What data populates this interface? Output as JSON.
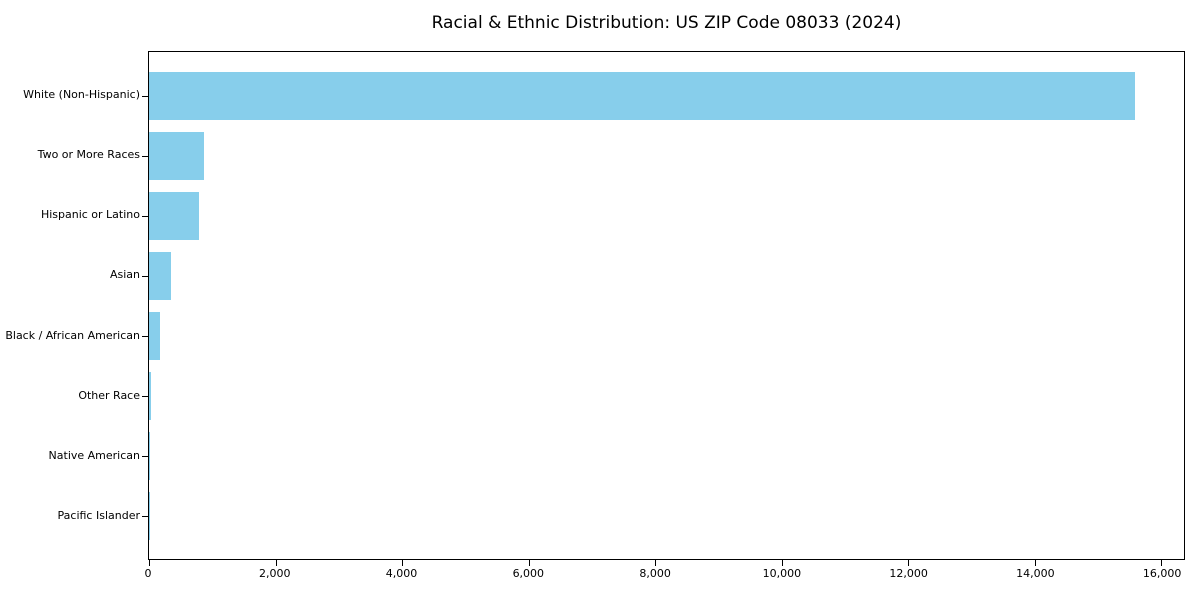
{
  "title": "Racial & Ethnic Distribution: US ZIP Code 08033 (2024)",
  "colors": {
    "bar": "#87CEEB",
    "spine": "#000000",
    "text": "#000000",
    "background": "#FFFFFF"
  },
  "chart_data": {
    "type": "bar",
    "orientation": "horizontal",
    "title": "Racial & Ethnic Distribution: US ZIP Code 08033 (2024)",
    "xlabel": "",
    "ylabel": "",
    "grid": false,
    "legend": null,
    "categories": [
      "White (Non-Hispanic)",
      "Two or More Races",
      "Hispanic or Latino",
      "Asian",
      "Black / African American",
      "Other Race",
      "Native American",
      "Pacific Islander"
    ],
    "values": [
      15590,
      870,
      795,
      340,
      170,
      30,
      5,
      2
    ],
    "xlim": [
      0,
      16360
    ],
    "xticks": [
      0,
      2000,
      4000,
      6000,
      8000,
      10000,
      12000,
      14000,
      16000
    ],
    "xtick_labels": [
      "0",
      "2,000",
      "4,000",
      "6,000",
      "8,000",
      "10,000",
      "12,000",
      "14,000",
      "16,000"
    ],
    "bar_color": "#87CEEB"
  }
}
